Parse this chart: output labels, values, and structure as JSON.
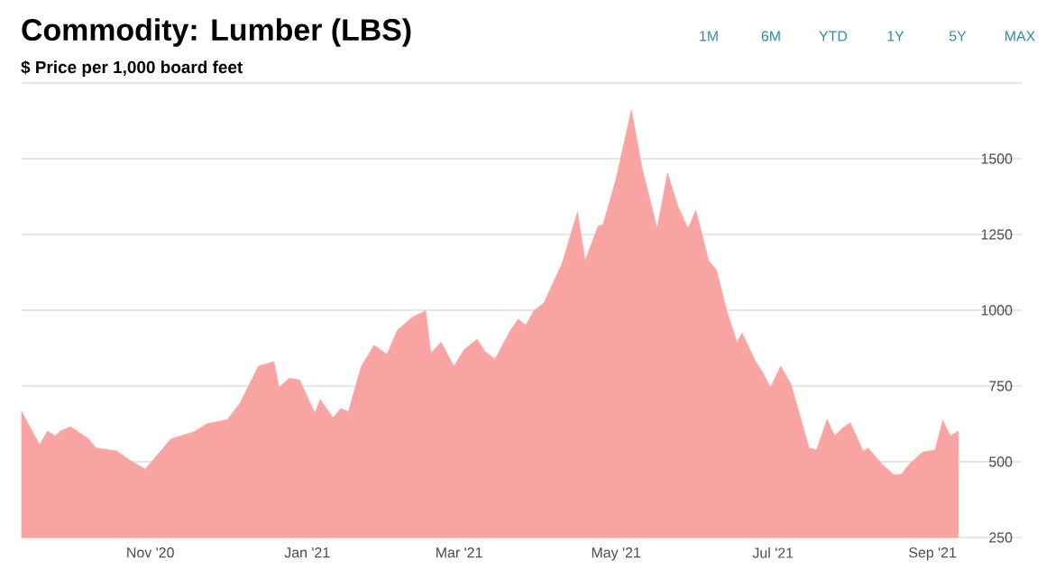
{
  "chart_data": {
    "type": "area",
    "title": "Commodity: Lumber (LBS)",
    "subtitle": "$ Price per 1,000 board feet",
    "annotations": [
      "1M",
      "6M",
      "YTD",
      "1Y",
      "5Y",
      "MAX"
    ],
    "x": [
      "2020-09-12",
      "2020-09-19",
      "2020-09-22",
      "2020-09-25",
      "2020-09-27",
      "2020-10-01",
      "2020-10-08",
      "2020-10-11",
      "2020-10-19",
      "2020-10-24",
      "2020-10-30",
      "2020-11-06",
      "2020-11-09",
      "2020-11-18",
      "2020-11-23",
      "2020-12-01",
      "2020-12-06",
      "2020-12-13",
      "2020-12-19",
      "2020-12-21",
      "2020-12-25",
      "2020-12-29",
      "2021-01-04",
      "2021-01-06",
      "2021-01-11",
      "2021-01-14",
      "2021-01-17",
      "2021-01-22",
      "2021-01-27",
      "2021-02-01",
      "2021-02-05",
      "2021-02-11",
      "2021-02-16",
      "2021-02-18",
      "2021-02-22",
      "2021-02-27",
      "2021-03-03",
      "2021-03-08",
      "2021-03-11",
      "2021-03-15",
      "2021-03-21",
      "2021-03-24",
      "2021-03-27",
      "2021-03-30",
      "2021-04-03",
      "2021-04-10",
      "2021-04-16",
      "2021-04-19",
      "2021-04-24",
      "2021-04-26",
      "2021-05-01",
      "2021-05-07",
      "2021-05-11",
      "2021-05-17",
      "2021-05-21",
      "2021-05-25",
      "2021-05-29",
      "2021-06-01",
      "2021-06-06",
      "2021-06-09",
      "2021-06-13",
      "2021-06-17",
      "2021-06-19",
      "2021-06-24",
      "2021-06-27",
      "2021-06-30",
      "2021-07-04",
      "2021-07-08",
      "2021-07-15",
      "2021-07-18",
      "2021-07-22",
      "2021-07-25",
      "2021-07-28",
      "2021-07-31",
      "2021-08-05",
      "2021-08-07",
      "2021-08-12",
      "2021-08-17",
      "2021-08-20",
      "2021-08-23",
      "2021-08-28",
      "2021-09-02",
      "2021-09-05",
      "2021-09-08",
      "2021-09-11"
    ],
    "series": [
      {
        "color": "#f9a3a3",
        "values": [
          665,
          555,
          601,
          585,
          601,
          615,
          575,
          545,
          535,
          505,
          475,
          545,
          575,
          599,
          625,
          639,
          695,
          815,
          830,
          745,
          775,
          770,
          659,
          705,
          645,
          675,
          665,
          815,
          884,
          854,
          934,
          978,
          998,
          858,
          894,
          815,
          870,
          904,
          864,
          838,
          934,
          970,
          950,
          998,
          1024,
          1153,
          1323,
          1163,
          1277,
          1283,
          1432,
          1661,
          1472,
          1269,
          1452,
          1343,
          1269,
          1329,
          1163,
          1133,
          998,
          894,
          924,
          834,
          794,
          745,
          815,
          755,
          545,
          539,
          639,
          585,
          611,
          629,
          535,
          545,
          495,
          456,
          459,
          492,
          531,
          539,
          635,
          585,
          601
        ]
      }
    ],
    "xlim": [
      "2020-09-12",
      "2021-10-06"
    ],
    "xticks": [
      {
        "value": "2020-11-01",
        "label": "Nov '20"
      },
      {
        "value": "2021-01-01",
        "label": "Jan '21"
      },
      {
        "value": "2021-03-01",
        "label": "Mar '21"
      },
      {
        "value": "2021-05-01",
        "label": "May '21"
      },
      {
        "value": "2021-07-01",
        "label": "Jul '21"
      },
      {
        "value": "2021-09-01",
        "label": "Sep '21"
      }
    ],
    "ylim": [
      250,
      1750
    ],
    "yticks": [
      250,
      500,
      750,
      1000,
      1250,
      1500,
      {
        "value": 1750,
        "label": null
      }
    ],
    "grid": "y",
    "legend": false
  }
}
